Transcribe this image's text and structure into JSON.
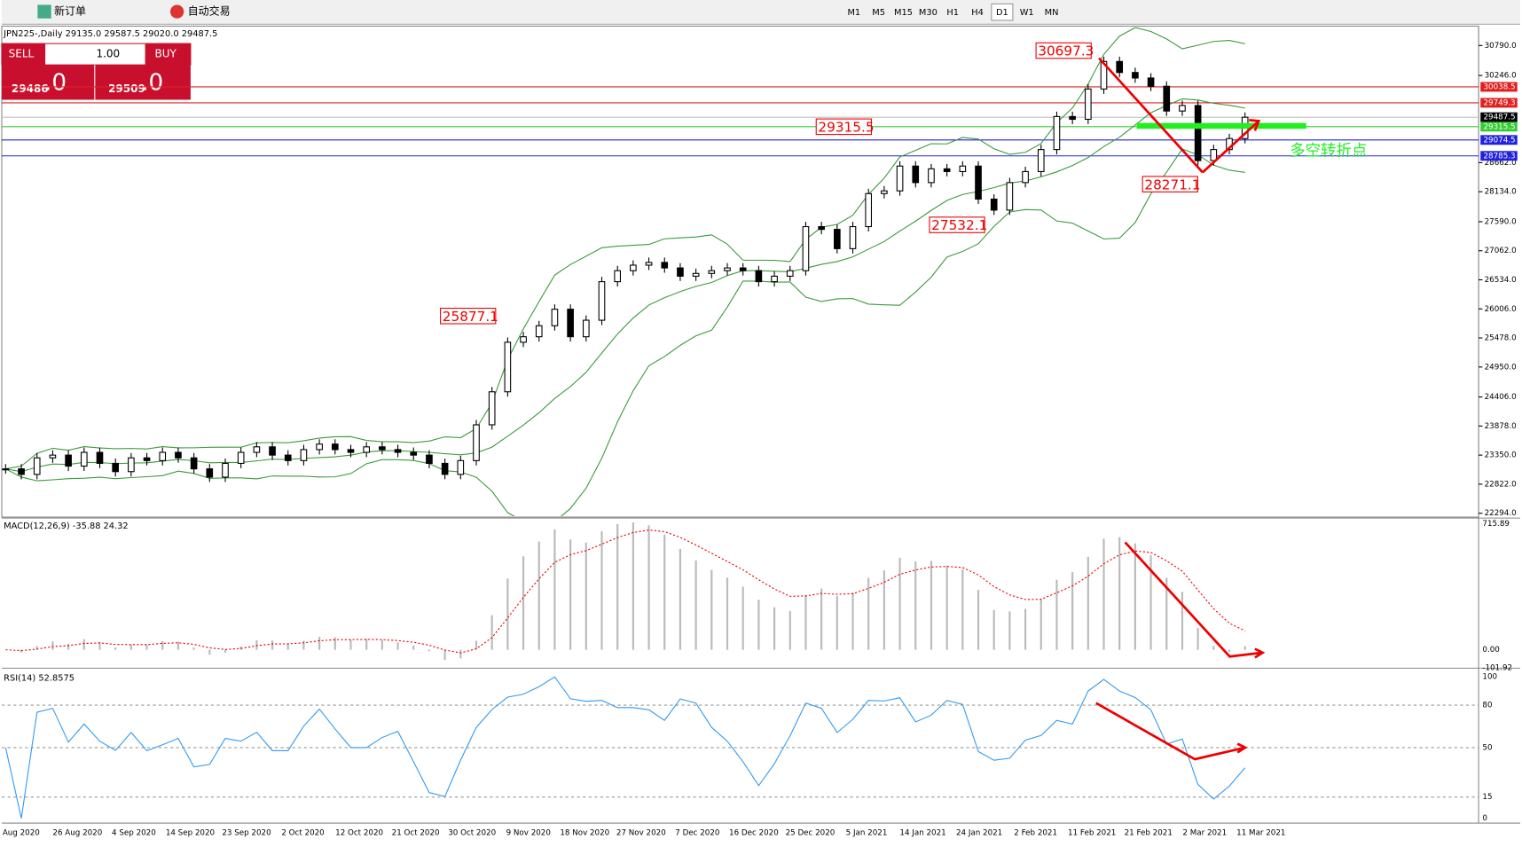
{
  "toolbar": {
    "new_order": "新订单",
    "auto_trading": "自动交易",
    "timeframes": [
      "M1",
      "M5",
      "M15",
      "M30",
      "H1",
      "H4",
      "D1",
      "W1",
      "MN"
    ]
  },
  "header": "JPN225-,Daily  29135.0 29587.5 29020.0 29487.5",
  "trade_panel": {
    "sell": "SELL",
    "buy": "BUY",
    "lot": "1.00",
    "sell_big": "29486",
    "sell_small": ".0",
    "buy_big": "29509",
    "buy_small": ".0"
  },
  "price_ticks": [
    {
      "value": 30790,
      "label": "30790.0"
    },
    {
      "value": 30246,
      "label": "30246.0"
    },
    {
      "value": 28662,
      "label": "28662.0"
    },
    {
      "value": 28134,
      "label": "28134.0"
    },
    {
      "value": 27590,
      "label": "27590.0"
    },
    {
      "value": 27062,
      "label": "27062.0"
    },
    {
      "value": 26534,
      "label": "26534.0"
    },
    {
      "value": 26006,
      "label": "26006.0"
    },
    {
      "value": 25478,
      "label": "25478.0"
    },
    {
      "value": 24950,
      "label": "24950.0"
    },
    {
      "value": 24406,
      "label": "24406.0"
    },
    {
      "value": 23878,
      "label": "23878.0"
    },
    {
      "value": 23350,
      "label": "23350.0"
    },
    {
      "value": 22822,
      "label": "22822.0"
    },
    {
      "value": 22294,
      "label": "22294.0"
    }
  ],
  "price_levels": [
    {
      "value": 30038.5,
      "label": "30038.5",
      "color": "#e02020"
    },
    {
      "value": 29749.3,
      "label": "29749.3",
      "color": "#e02020"
    },
    {
      "value": 29487.5,
      "label": "29487.5",
      "color": "#c0c0c0"
    },
    {
      "value": 29315.5,
      "label": "29315.5",
      "color": "#33cc33"
    },
    {
      "value": 29074.5,
      "label": "29074.5",
      "color": "#2020e0"
    },
    {
      "value": 28785.3,
      "label": "28785.3",
      "color": "#2020e0"
    }
  ],
  "annotations": [
    {
      "label": "30697.3",
      "value": 30697.3
    },
    {
      "label": "29315.5",
      "value": 29315.5
    },
    {
      "label": "28271.1",
      "value": 28271.1
    },
    {
      "label": "27532.1",
      "value": 27532.1
    },
    {
      "label": "25877.1",
      "value": 25877.1
    }
  ],
  "note": "多空转折点",
  "closes": [
    23100,
    23000,
    23300,
    23350,
    23150,
    23400,
    23200,
    23050,
    23300,
    23250,
    23400,
    23300,
    23100,
    22950,
    23200,
    23400,
    23500,
    23350,
    23250,
    23450,
    23550,
    23450,
    23400,
    23500,
    23450,
    23400,
    23350,
    23200,
    23000,
    23250,
    23900,
    24500,
    25400,
    25500,
    25700,
    26000,
    25500,
    25800,
    26500,
    26700,
    26800,
    26850,
    26750,
    26600,
    26650,
    26700,
    26750,
    26700,
    26500,
    26600,
    26700,
    27500,
    27450,
    27100,
    27500,
    28100,
    28150,
    28600,
    28300,
    28550,
    28500,
    28600,
    28000,
    27800,
    28300,
    28500,
    28900,
    29500,
    29450,
    30000,
    30500,
    30300,
    30200,
    30050,
    29600,
    29700,
    28700,
    28900,
    29100,
    29487.5
  ],
  "macd": {
    "label": "MACD(12,26,9) -35.88 24.32",
    "ticks": [
      {
        "value": 715.89,
        "label": "715.89"
      },
      {
        "value": 0,
        "label": "0.00"
      },
      {
        "value": -101.92,
        "label": "-101.92"
      }
    ]
  },
  "rsi": {
    "label": "RSI(14) 52.8575",
    "ticks": [
      100,
      80,
      50,
      15,
      0
    ]
  },
  "dates": [
    "Aug 2020",
    "26 Aug 2020",
    "4 Sep 2020",
    "14 Sep 2020",
    "23 Sep 2020",
    "2 Oct 2020",
    "12 Oct 2020",
    "21 Oct 2020",
    "30 Oct 2020",
    "9 Nov 2020",
    "18 Nov 2020",
    "27 Nov 2020",
    "7 Dec 2020",
    "16 Dec 2020",
    "25 Dec 2020",
    "5 Jan 2021",
    "14 Jan 2021",
    "24 Jan 2021",
    "2 Feb 2021",
    "11 Feb 2021",
    "21 Feb 2021",
    "2 Mar 2021",
    "11 Mar 2021"
  ]
}
